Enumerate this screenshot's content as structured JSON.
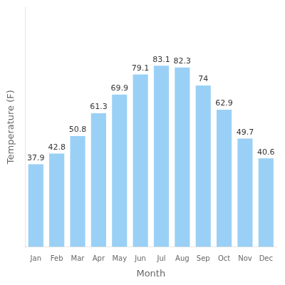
{
  "chart_data": {
    "type": "bar",
    "categories": [
      "Jan",
      "Feb",
      "Mar",
      "Apr",
      "May",
      "Jun",
      "Jul",
      "Aug",
      "Sep",
      "Oct",
      "Nov",
      "Dec"
    ],
    "values": [
      37.9,
      42.8,
      50.8,
      61.3,
      69.9,
      79.1,
      83.1,
      82.3,
      74.0,
      62.9,
      49.7,
      40.6
    ],
    "xlabel": "Month",
    "ylabel": "Temperature (F)",
    "ylim": [
      0,
      110
    ],
    "grid": false,
    "data_labels": true,
    "tick_labels": "x"
  }
}
